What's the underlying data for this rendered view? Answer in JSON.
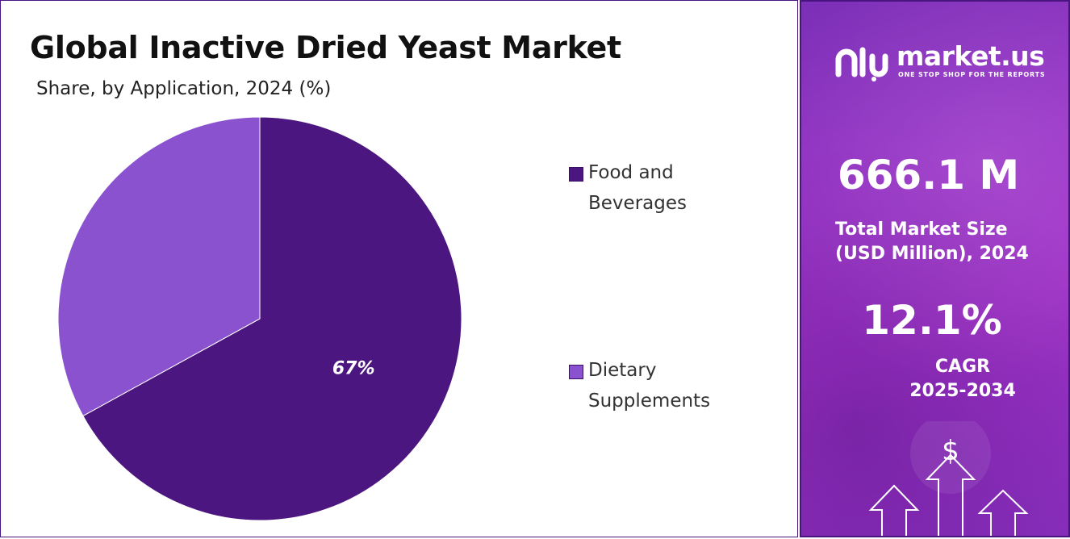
{
  "chart_data": {
    "type": "pie",
    "title": "Global Inactive Dried Yeast Market",
    "subtitle": "Share, by Application, 2024 (%)",
    "categories": [
      "Food and Beverages",
      "Dietary Supplements"
    ],
    "values": [
      67,
      33
    ],
    "data_labels": [
      "67%",
      ""
    ],
    "colors": [
      "#4c1680",
      "#8a52cf"
    ],
    "legend_position": "right"
  },
  "sidebar": {
    "logo_text": "market.us",
    "logo_tagline": "ONE STOP SHOP FOR THE REPORTS",
    "market_size_value": "666.1 M",
    "market_size_label": "Total Market Size\n(USD Million), 2024",
    "cagr_value": "12.1%",
    "cagr_label": "CAGR\n2025-2034",
    "dollar_symbol": "$",
    "accent_color": "#9a34c8"
  }
}
